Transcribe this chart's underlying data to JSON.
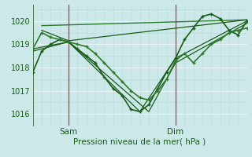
{
  "title": "",
  "xlabel": "Pression niveau de la mer( hPa )",
  "ylabel": "",
  "bg_color": "#cce8e8",
  "grid_minor_color": "#b8d8d8",
  "grid_major_color": "#e8f4f4",
  "ylim": [
    1015.5,
    1020.7
  ],
  "xlim": [
    0,
    48
  ],
  "xtick_positions": [
    8,
    32
  ],
  "xtick_labels": [
    "Sam",
    "Dim"
  ],
  "vline_positions": [
    8,
    32
  ],
  "vline_color": "#cc3333",
  "ytick_positions": [
    1016,
    1017,
    1018,
    1019,
    1020
  ],
  "series": [
    {
      "x": [
        0,
        2,
        4,
        6,
        8,
        10,
        12,
        14,
        16,
        18,
        20,
        22,
        24,
        26,
        28,
        30,
        32,
        34,
        36,
        38,
        40,
        42,
        44,
        46,
        48
      ],
      "y": [
        1017.8,
        1018.7,
        1019.0,
        1019.2,
        1019.1,
        1018.8,
        1018.5,
        1018.2,
        1017.6,
        1017.1,
        1016.8,
        1016.2,
        1016.1,
        1016.4,
        1017.1,
        1017.8,
        1018.4,
        1019.2,
        1019.7,
        1020.2,
        1020.3,
        1020.1,
        1019.6,
        1019.4,
        1020.0
      ],
      "color": "#1a5c1a",
      "lw": 1.2,
      "marker": "+"
    },
    {
      "x": [
        2,
        48
      ],
      "y": [
        1019.8,
        1020.05
      ],
      "color": "#2d7a2d",
      "lw": 1.0,
      "marker": null
    },
    {
      "x": [
        0,
        2,
        4,
        6,
        8,
        10,
        12,
        14,
        16,
        18,
        20,
        22,
        24,
        26,
        28,
        30,
        32,
        34,
        36,
        38,
        40,
        42,
        44,
        46,
        48
      ],
      "y": [
        1018.8,
        1019.5,
        1019.3,
        1019.2,
        1019.1,
        1019.0,
        1018.9,
        1018.6,
        1018.2,
        1017.8,
        1017.4,
        1017.0,
        1016.7,
        1016.6,
        1017.0,
        1017.5,
        1018.3,
        1018.6,
        1018.2,
        1018.6,
        1019.0,
        1019.2,
        1019.5,
        1019.6,
        1019.7
      ],
      "color": "#2d7a2d",
      "lw": 1.2,
      "marker": "+"
    },
    {
      "x": [
        2,
        8,
        48
      ],
      "y": [
        1019.6,
        1019.15,
        1020.05
      ],
      "color": "#1a5c1a",
      "lw": 0.9,
      "marker": null
    },
    {
      "x": [
        0,
        8,
        24,
        32,
        48
      ],
      "y": [
        1018.8,
        1019.1,
        1016.1,
        1018.4,
        1020.0
      ],
      "color": "#1a5c1a",
      "lw": 0.9,
      "marker": null
    },
    {
      "x": [
        0,
        8,
        26,
        32,
        48
      ],
      "y": [
        1018.7,
        1019.1,
        1016.1,
        1018.2,
        1019.9
      ],
      "color": "#1a5c1a",
      "lw": 0.9,
      "marker": null
    }
  ]
}
